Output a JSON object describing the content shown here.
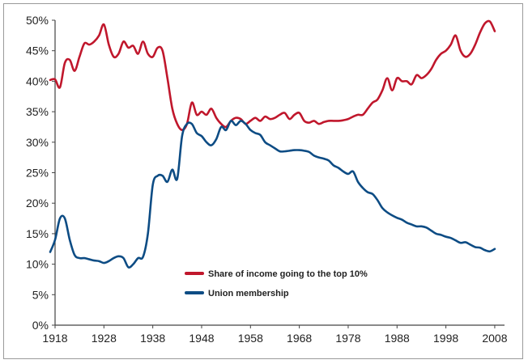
{
  "chart_data": {
    "type": "line",
    "title": "",
    "xlabel": "",
    "ylabel": "",
    "xlim": [
      1918,
      2010
    ],
    "ylim": [
      0,
      50
    ],
    "x_ticks": [
      "1918",
      "1928",
      "1938",
      "1948",
      "1958",
      "1968",
      "1978",
      "1988",
      "1998",
      "2008"
    ],
    "y_ticks": [
      "0%",
      "5%",
      "10%",
      "15%",
      "20%",
      "25%",
      "30%",
      "35%",
      "40%",
      "45%",
      "50%"
    ],
    "legend_position": "lower-center",
    "grid": false,
    "series": [
      {
        "name": "Share of income going to the top 10%",
        "color": "#c0172c",
        "points": [
          [
            1917,
            40.2
          ],
          [
            1918,
            40.3
          ],
          [
            1919,
            39.0
          ],
          [
            1920,
            43.0
          ],
          [
            1921,
            43.5
          ],
          [
            1922,
            41.7
          ],
          [
            1923,
            44.0
          ],
          [
            1924,
            46.2
          ],
          [
            1925,
            46.0
          ],
          [
            1926,
            46.5
          ],
          [
            1927,
            47.5
          ],
          [
            1928,
            49.3
          ],
          [
            1929,
            46.0
          ],
          [
            1930,
            44.0
          ],
          [
            1931,
            44.5
          ],
          [
            1932,
            46.5
          ],
          [
            1933,
            45.5
          ],
          [
            1934,
            45.8
          ],
          [
            1935,
            44.5
          ],
          [
            1936,
            46.5
          ],
          [
            1937,
            44.5
          ],
          [
            1938,
            44.0
          ],
          [
            1939,
            45.5
          ],
          [
            1940,
            45.0
          ],
          [
            1941,
            40.5
          ],
          [
            1942,
            35.5
          ],
          [
            1943,
            33.0
          ],
          [
            1944,
            32.0
          ],
          [
            1945,
            33.0
          ],
          [
            1946,
            36.5
          ],
          [
            1947,
            34.5
          ],
          [
            1948,
            35.0
          ],
          [
            1949,
            34.5
          ],
          [
            1950,
            35.5
          ],
          [
            1951,
            34.0
          ],
          [
            1952,
            33.0
          ],
          [
            1953,
            32.5
          ],
          [
            1954,
            33.5
          ],
          [
            1955,
            34.0
          ],
          [
            1956,
            33.8
          ],
          [
            1957,
            33.0
          ],
          [
            1958,
            33.5
          ],
          [
            1959,
            34.0
          ],
          [
            1960,
            33.5
          ],
          [
            1961,
            34.2
          ],
          [
            1962,
            33.8
          ],
          [
            1963,
            34.0
          ],
          [
            1964,
            34.5
          ],
          [
            1965,
            34.8
          ],
          [
            1966,
            33.8
          ],
          [
            1967,
            34.5
          ],
          [
            1968,
            34.8
          ],
          [
            1969,
            33.5
          ],
          [
            1970,
            33.2
          ],
          [
            1971,
            33.5
          ],
          [
            1972,
            33.0
          ],
          [
            1973,
            33.3
          ],
          [
            1974,
            33.5
          ],
          [
            1975,
            33.5
          ],
          [
            1976,
            33.5
          ],
          [
            1977,
            33.6
          ],
          [
            1978,
            33.8
          ],
          [
            1979,
            34.2
          ],
          [
            1980,
            34.5
          ],
          [
            1981,
            34.5
          ],
          [
            1982,
            35.5
          ],
          [
            1983,
            36.5
          ],
          [
            1984,
            37.0
          ],
          [
            1985,
            38.5
          ],
          [
            1986,
            40.5
          ],
          [
            1987,
            38.5
          ],
          [
            1988,
            40.5
          ],
          [
            1989,
            40.0
          ],
          [
            1990,
            40.0
          ],
          [
            1991,
            39.5
          ],
          [
            1992,
            41.0
          ],
          [
            1993,
            40.5
          ],
          [
            1994,
            41.0
          ],
          [
            1995,
            42.0
          ],
          [
            1996,
            43.5
          ],
          [
            1997,
            44.5
          ],
          [
            1998,
            45.0
          ],
          [
            1999,
            46.0
          ],
          [
            2000,
            47.5
          ],
          [
            2001,
            45.0
          ],
          [
            2002,
            44.0
          ],
          [
            2003,
            44.5
          ],
          [
            2004,
            46.0
          ],
          [
            2005,
            48.0
          ],
          [
            2006,
            49.5
          ],
          [
            2007,
            49.8
          ],
          [
            2008,
            48.2
          ]
        ]
      },
      {
        "name": "Union membership",
        "color": "#0d4c84",
        "points": [
          [
            1917,
            12.0
          ],
          [
            1918,
            14.0
          ],
          [
            1919,
            17.5
          ],
          [
            1920,
            17.5
          ],
          [
            1921,
            14.0
          ],
          [
            1922,
            11.5
          ],
          [
            1923,
            11.0
          ],
          [
            1924,
            11.0
          ],
          [
            1925,
            10.8
          ],
          [
            1926,
            10.6
          ],
          [
            1927,
            10.5
          ],
          [
            1928,
            10.2
          ],
          [
            1929,
            10.5
          ],
          [
            1930,
            11.0
          ],
          [
            1931,
            11.3
          ],
          [
            1932,
            11.0
          ],
          [
            1933,
            9.5
          ],
          [
            1934,
            10.0
          ],
          [
            1935,
            11.0
          ],
          [
            1936,
            11.2
          ],
          [
            1937,
            15.0
          ],
          [
            1938,
            23.0
          ],
          [
            1939,
            24.5
          ],
          [
            1940,
            24.5
          ],
          [
            1941,
            23.5
          ],
          [
            1942,
            25.5
          ],
          [
            1943,
            24.0
          ],
          [
            1944,
            31.0
          ],
          [
            1945,
            33.0
          ],
          [
            1946,
            33.0
          ],
          [
            1947,
            31.5
          ],
          [
            1948,
            31.0
          ],
          [
            1949,
            30.0
          ],
          [
            1950,
            29.5
          ],
          [
            1951,
            30.5
          ],
          [
            1952,
            32.5
          ],
          [
            1953,
            32.0
          ],
          [
            1954,
            33.5
          ],
          [
            1955,
            32.8
          ],
          [
            1956,
            33.5
          ],
          [
            1957,
            33.0
          ],
          [
            1958,
            32.0
          ],
          [
            1959,
            31.5
          ],
          [
            1960,
            31.2
          ],
          [
            1961,
            30.0
          ],
          [
            1962,
            29.5
          ],
          [
            1963,
            29.0
          ],
          [
            1964,
            28.5
          ],
          [
            1965,
            28.5
          ],
          [
            1966,
            28.6
          ],
          [
            1967,
            28.7
          ],
          [
            1968,
            28.7
          ],
          [
            1969,
            28.6
          ],
          [
            1970,
            28.4
          ],
          [
            1971,
            27.8
          ],
          [
            1972,
            27.5
          ],
          [
            1973,
            27.3
          ],
          [
            1974,
            27.0
          ],
          [
            1975,
            26.2
          ],
          [
            1976,
            25.8
          ],
          [
            1977,
            25.2
          ],
          [
            1978,
            24.8
          ],
          [
            1979,
            25.2
          ],
          [
            1980,
            23.5
          ],
          [
            1981,
            22.5
          ],
          [
            1982,
            21.8
          ],
          [
            1983,
            21.5
          ],
          [
            1984,
            20.5
          ],
          [
            1985,
            19.2
          ],
          [
            1986,
            18.5
          ],
          [
            1987,
            18.0
          ],
          [
            1988,
            17.6
          ],
          [
            1989,
            17.3
          ],
          [
            1990,
            16.8
          ],
          [
            1991,
            16.5
          ],
          [
            1992,
            16.2
          ],
          [
            1993,
            16.2
          ],
          [
            1994,
            16.0
          ],
          [
            1995,
            15.5
          ],
          [
            1996,
            15.0
          ],
          [
            1997,
            14.8
          ],
          [
            1998,
            14.5
          ],
          [
            1999,
            14.3
          ],
          [
            2000,
            13.9
          ],
          [
            2001,
            13.5
          ],
          [
            2002,
            13.6
          ],
          [
            2003,
            13.2
          ],
          [
            2004,
            12.8
          ],
          [
            2005,
            12.7
          ],
          [
            2006,
            12.3
          ],
          [
            2007,
            12.1
          ],
          [
            2008,
            12.5
          ]
        ]
      }
    ]
  }
}
